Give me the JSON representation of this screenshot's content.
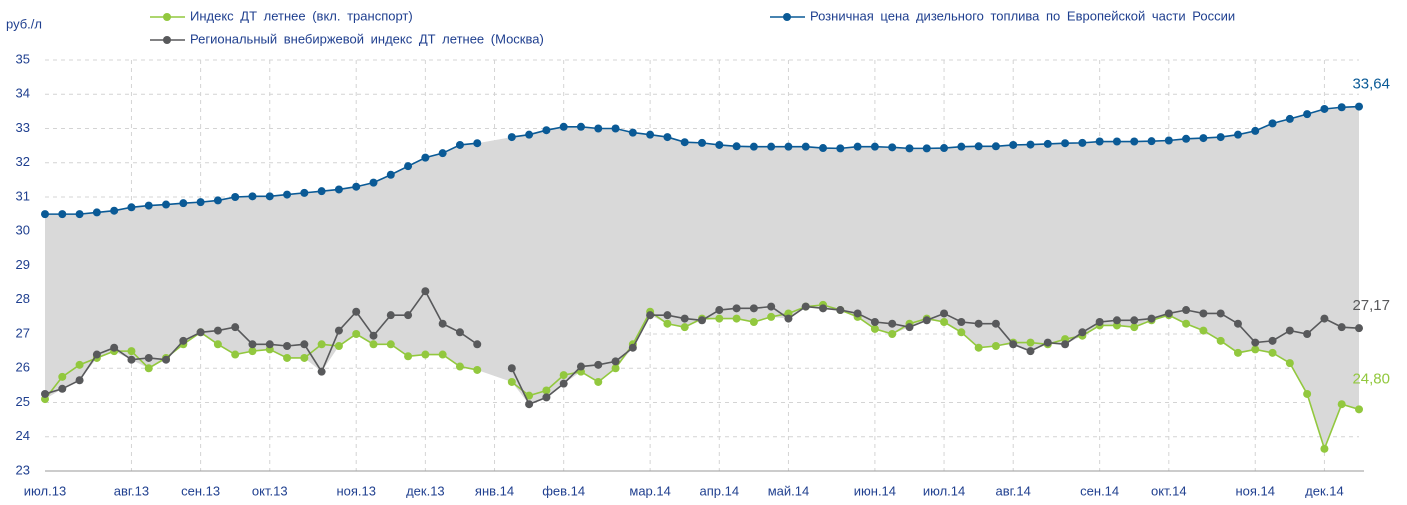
{
  "chart_data": {
    "type": "line",
    "y_label": "руб./л",
    "categories": [
      "июл.13",
      null,
      null,
      null,
      null,
      "авг.13",
      null,
      null,
      null,
      "сен.13",
      null,
      null,
      null,
      "окт.13",
      null,
      null,
      null,
      null,
      "ноя.13",
      null,
      null,
      null,
      "дек.13",
      null,
      null,
      null,
      "янв.14",
      null,
      null,
      null,
      "фев.14",
      null,
      null,
      null,
      null,
      "мар.14",
      null,
      null,
      null,
      "апр.14",
      null,
      null,
      null,
      "май.14",
      null,
      null,
      null,
      null,
      "июн.14",
      null,
      null,
      null,
      "июл.14",
      null,
      null,
      null,
      "авг.14",
      null,
      null,
      null,
      null,
      "сен.14",
      null,
      null,
      null,
      "окт.14",
      null,
      null,
      null,
      null,
      "ноя.14",
      null,
      null,
      null,
      "дек.14",
      null,
      null
    ],
    "series": [
      {
        "name": "Индекс ДТ летнее (вкл. транспорт)",
        "color": "#92c83e",
        "values": [
          25.1,
          25.75,
          26.1,
          26.3,
          26.5,
          26.5,
          26.0,
          26.3,
          26.7,
          27.05,
          26.7,
          26.4,
          26.5,
          26.55,
          26.3,
          26.3,
          26.7,
          26.65,
          27.0,
          26.7,
          26.7,
          26.35,
          26.4,
          26.4,
          26.05,
          25.95,
          null,
          25.6,
          25.2,
          25.35,
          25.8,
          25.9,
          25.6,
          26.0,
          26.7,
          27.65,
          27.3,
          27.2,
          27.45,
          27.45,
          27.45,
          27.35,
          27.5,
          27.6,
          27.8,
          27.85,
          27.7,
          27.5,
          27.15,
          27.0,
          27.3,
          27.45,
          27.35,
          27.05,
          26.6,
          26.65,
          26.75,
          26.75,
          26.7,
          26.85,
          26.95,
          27.25,
          27.25,
          27.2,
          27.4,
          27.55,
          27.3,
          27.1,
          26.8,
          26.45,
          26.55,
          26.45,
          26.15,
          25.25,
          23.65,
          24.95,
          24.8
        ],
        "value_labels": [
          null,
          null,
          null,
          null,
          null,
          null,
          null,
          null,
          null,
          null,
          null,
          null,
          null,
          null,
          null,
          null,
          null,
          null,
          null,
          null,
          null,
          null,
          null,
          null,
          null,
          null,
          null,
          null,
          null,
          null,
          null,
          null,
          null,
          null,
          null,
          null,
          null,
          null,
          null,
          null,
          null,
          null,
          null,
          null,
          null,
          null,
          null,
          null,
          null,
          null,
          null,
          null,
          null,
          null,
          null,
          null,
          null,
          null,
          null,
          null,
          null,
          null,
          null,
          null,
          null,
          null,
          null,
          null,
          null,
          null,
          null,
          null,
          null,
          null,
          null,
          null,
          "24,80"
        ]
      },
      {
        "name": "Региональный внебиржевой индекс ДТ летнее (Москва)",
        "color": "#58595b",
        "values": [
          25.25,
          25.4,
          25.65,
          26.4,
          26.6,
          26.25,
          26.3,
          26.25,
          26.8,
          27.05,
          27.1,
          27.2,
          26.7,
          26.7,
          26.65,
          26.7,
          25.9,
          27.1,
          27.65,
          26.95,
          27.55,
          27.55,
          28.25,
          27.3,
          27.05,
          26.7,
          null,
          26.0,
          24.95,
          25.15,
          25.55,
          26.05,
          26.1,
          26.2,
          26.6,
          27.55,
          27.55,
          27.45,
          27.4,
          27.7,
          27.75,
          27.75,
          27.8,
          27.45,
          27.8,
          27.75,
          27.7,
          27.6,
          27.35,
          27.3,
          27.2,
          27.4,
          27.6,
          27.35,
          27.3,
          27.3,
          26.7,
          26.5,
          26.75,
          26.7,
          27.05,
          27.35,
          27.4,
          27.4,
          27.45,
          27.6,
          27.7,
          27.6,
          27.6,
          27.3,
          26.75,
          26.8,
          27.1,
          27.0,
          27.45,
          27.2,
          27.17
        ],
        "value_labels": [
          null,
          null,
          null,
          null,
          null,
          null,
          null,
          null,
          null,
          null,
          null,
          null,
          null,
          null,
          null,
          null,
          null,
          null,
          null,
          null,
          null,
          null,
          null,
          null,
          null,
          null,
          null,
          null,
          null,
          null,
          null,
          null,
          null,
          null,
          null,
          null,
          null,
          null,
          null,
          null,
          null,
          null,
          null,
          null,
          null,
          null,
          null,
          null,
          null,
          null,
          null,
          null,
          null,
          null,
          null,
          null,
          null,
          null,
          null,
          null,
          null,
          null,
          null,
          null,
          null,
          null,
          null,
          null,
          null,
          null,
          null,
          null,
          null,
          null,
          null,
          null,
          "27,17"
        ]
      },
      {
        "name": "Розничная цена дизельного топлива по Европейской части России",
        "color": "#0a5a96",
        "values": [
          30.5,
          30.5,
          30.5,
          30.55,
          30.6,
          30.7,
          30.75,
          30.78,
          30.82,
          30.85,
          30.9,
          31.0,
          31.02,
          31.02,
          31.07,
          31.12,
          31.17,
          31.22,
          31.3,
          31.42,
          31.65,
          31.9,
          32.15,
          32.28,
          32.52,
          32.57,
          null,
          32.75,
          32.82,
          32.95,
          33.05,
          33.05,
          33.0,
          33.0,
          32.88,
          32.82,
          32.75,
          32.6,
          32.58,
          32.52,
          32.48,
          32.47,
          32.47,
          32.47,
          32.47,
          32.43,
          32.42,
          32.47,
          32.47,
          32.45,
          32.42,
          32.42,
          32.43,
          32.47,
          32.48,
          32.48,
          32.52,
          32.53,
          32.55,
          32.57,
          32.58,
          32.62,
          32.62,
          32.62,
          32.63,
          32.65,
          32.7,
          32.72,
          32.75,
          32.82,
          32.93,
          33.15,
          33.28,
          33.42,
          33.57,
          33.62,
          33.64
        ],
        "value_labels": [
          null,
          null,
          null,
          null,
          null,
          null,
          null,
          null,
          null,
          null,
          null,
          null,
          null,
          null,
          null,
          null,
          null,
          null,
          null,
          null,
          null,
          null,
          null,
          null,
          null,
          null,
          null,
          null,
          null,
          null,
          null,
          null,
          null,
          null,
          null,
          null,
          null,
          null,
          null,
          null,
          null,
          null,
          null,
          null,
          null,
          null,
          null,
          null,
          null,
          null,
          null,
          null,
          null,
          null,
          null,
          null,
          null,
          null,
          null,
          null,
          null,
          null,
          null,
          null,
          null,
          null,
          null,
          null,
          null,
          null,
          null,
          null,
          null,
          null,
          null,
          null,
          "33,64"
        ]
      }
    ],
    "ylim": [
      23,
      35
    ],
    "yticks": [
      23,
      24,
      25,
      26,
      27,
      28,
      29,
      30,
      31,
      32,
      33,
      34,
      35
    ],
    "grid": true
  }
}
